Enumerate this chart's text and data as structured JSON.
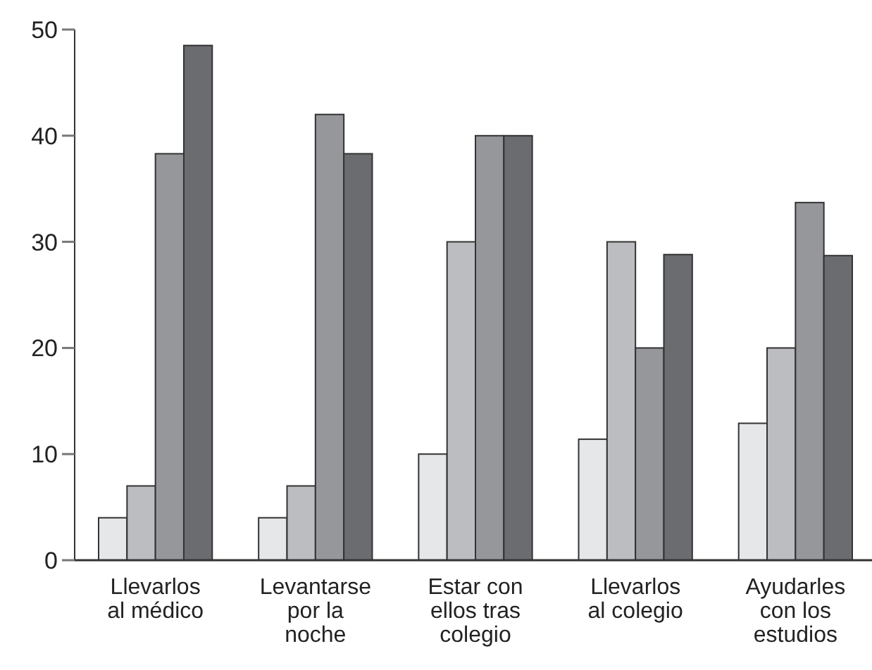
{
  "chart_data": {
    "type": "bar",
    "categories": [
      "Llevarlos al médico",
      "Levantarse por la noche",
      "Estar con ellos tras colegio",
      "Llevarlos al colegio",
      "Ayudarles con los estudios"
    ],
    "series": [
      {
        "color": "#e6e7e9",
        "values": [
          4,
          4,
          10,
          11.4,
          12.9
        ]
      },
      {
        "color": "#bcbdc1",
        "values": [
          7,
          7,
          30,
          30,
          20
        ]
      },
      {
        "color": "#96979b",
        "values": [
          38.3,
          42,
          40,
          20,
          33.7
        ]
      },
      {
        "color": "#6b6c70",
        "values": [
          48.5,
          38.3,
          40,
          28.8,
          28.7
        ]
      }
    ],
    "ylim": [
      0,
      50
    ],
    "yticks": [
      0,
      10,
      20,
      30,
      40,
      50
    ]
  }
}
